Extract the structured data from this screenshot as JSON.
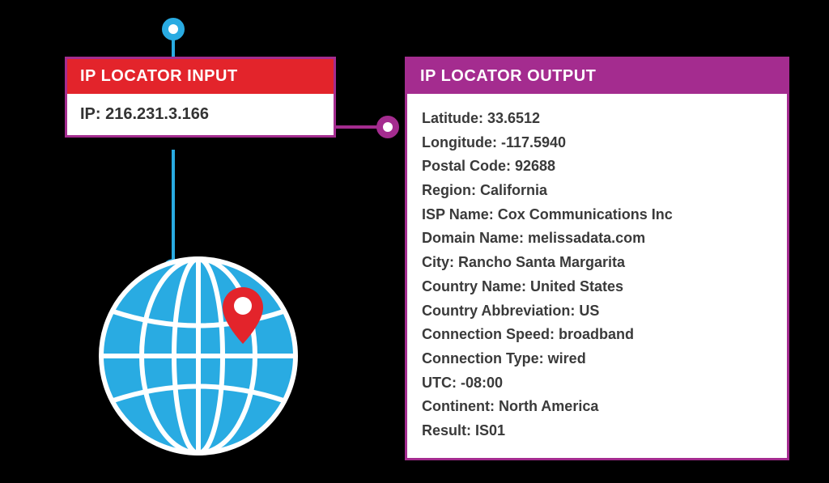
{
  "colors": {
    "bg": "#000000",
    "input_header": "#e3242b",
    "output_header": "#a42c8f",
    "border": "#a42c8f",
    "accent_blue": "#29abe2",
    "pin_red": "#e3242b",
    "text_dark": "#3a3a3a",
    "white": "#ffffff"
  },
  "input": {
    "title": "IP LOCATOR INPUT",
    "field_label": "IP:",
    "field_value": "216.231.3.166"
  },
  "output": {
    "title": "IP LOCATOR OUTPUT",
    "rows": [
      {
        "label": "Latitude:",
        "value": "33.6512"
      },
      {
        "label": "Longitude:",
        "value": "-117.5940"
      },
      {
        "label": "Postal Code:",
        "value": "92688"
      },
      {
        "label": "Region:",
        "value": "California"
      },
      {
        "label": "ISP Name:",
        "value": "Cox Communications Inc"
      },
      {
        "label": "Domain Name:",
        "value": "melissadata.com"
      },
      {
        "label": "City:",
        "value": "Rancho Santa Margarita"
      },
      {
        "label": "Country Name:",
        "value": "United States"
      },
      {
        "label": "Country Abbreviation:",
        "value": "US"
      },
      {
        "label": "Connection Speed:",
        "value": "broadband"
      },
      {
        "label": "Connection Type:",
        "value": "wired"
      },
      {
        "label": "UTC:",
        "value": "-08:00"
      },
      {
        "label": "Continent:",
        "value": "North America"
      },
      {
        "label": "Result:",
        "value": "IS01"
      }
    ]
  },
  "diagram": {
    "globe_color": "#29abe2",
    "globe_line_color": "#ffffff",
    "pin_color": "#e3242b",
    "pin_inner": "#ffffff"
  }
}
